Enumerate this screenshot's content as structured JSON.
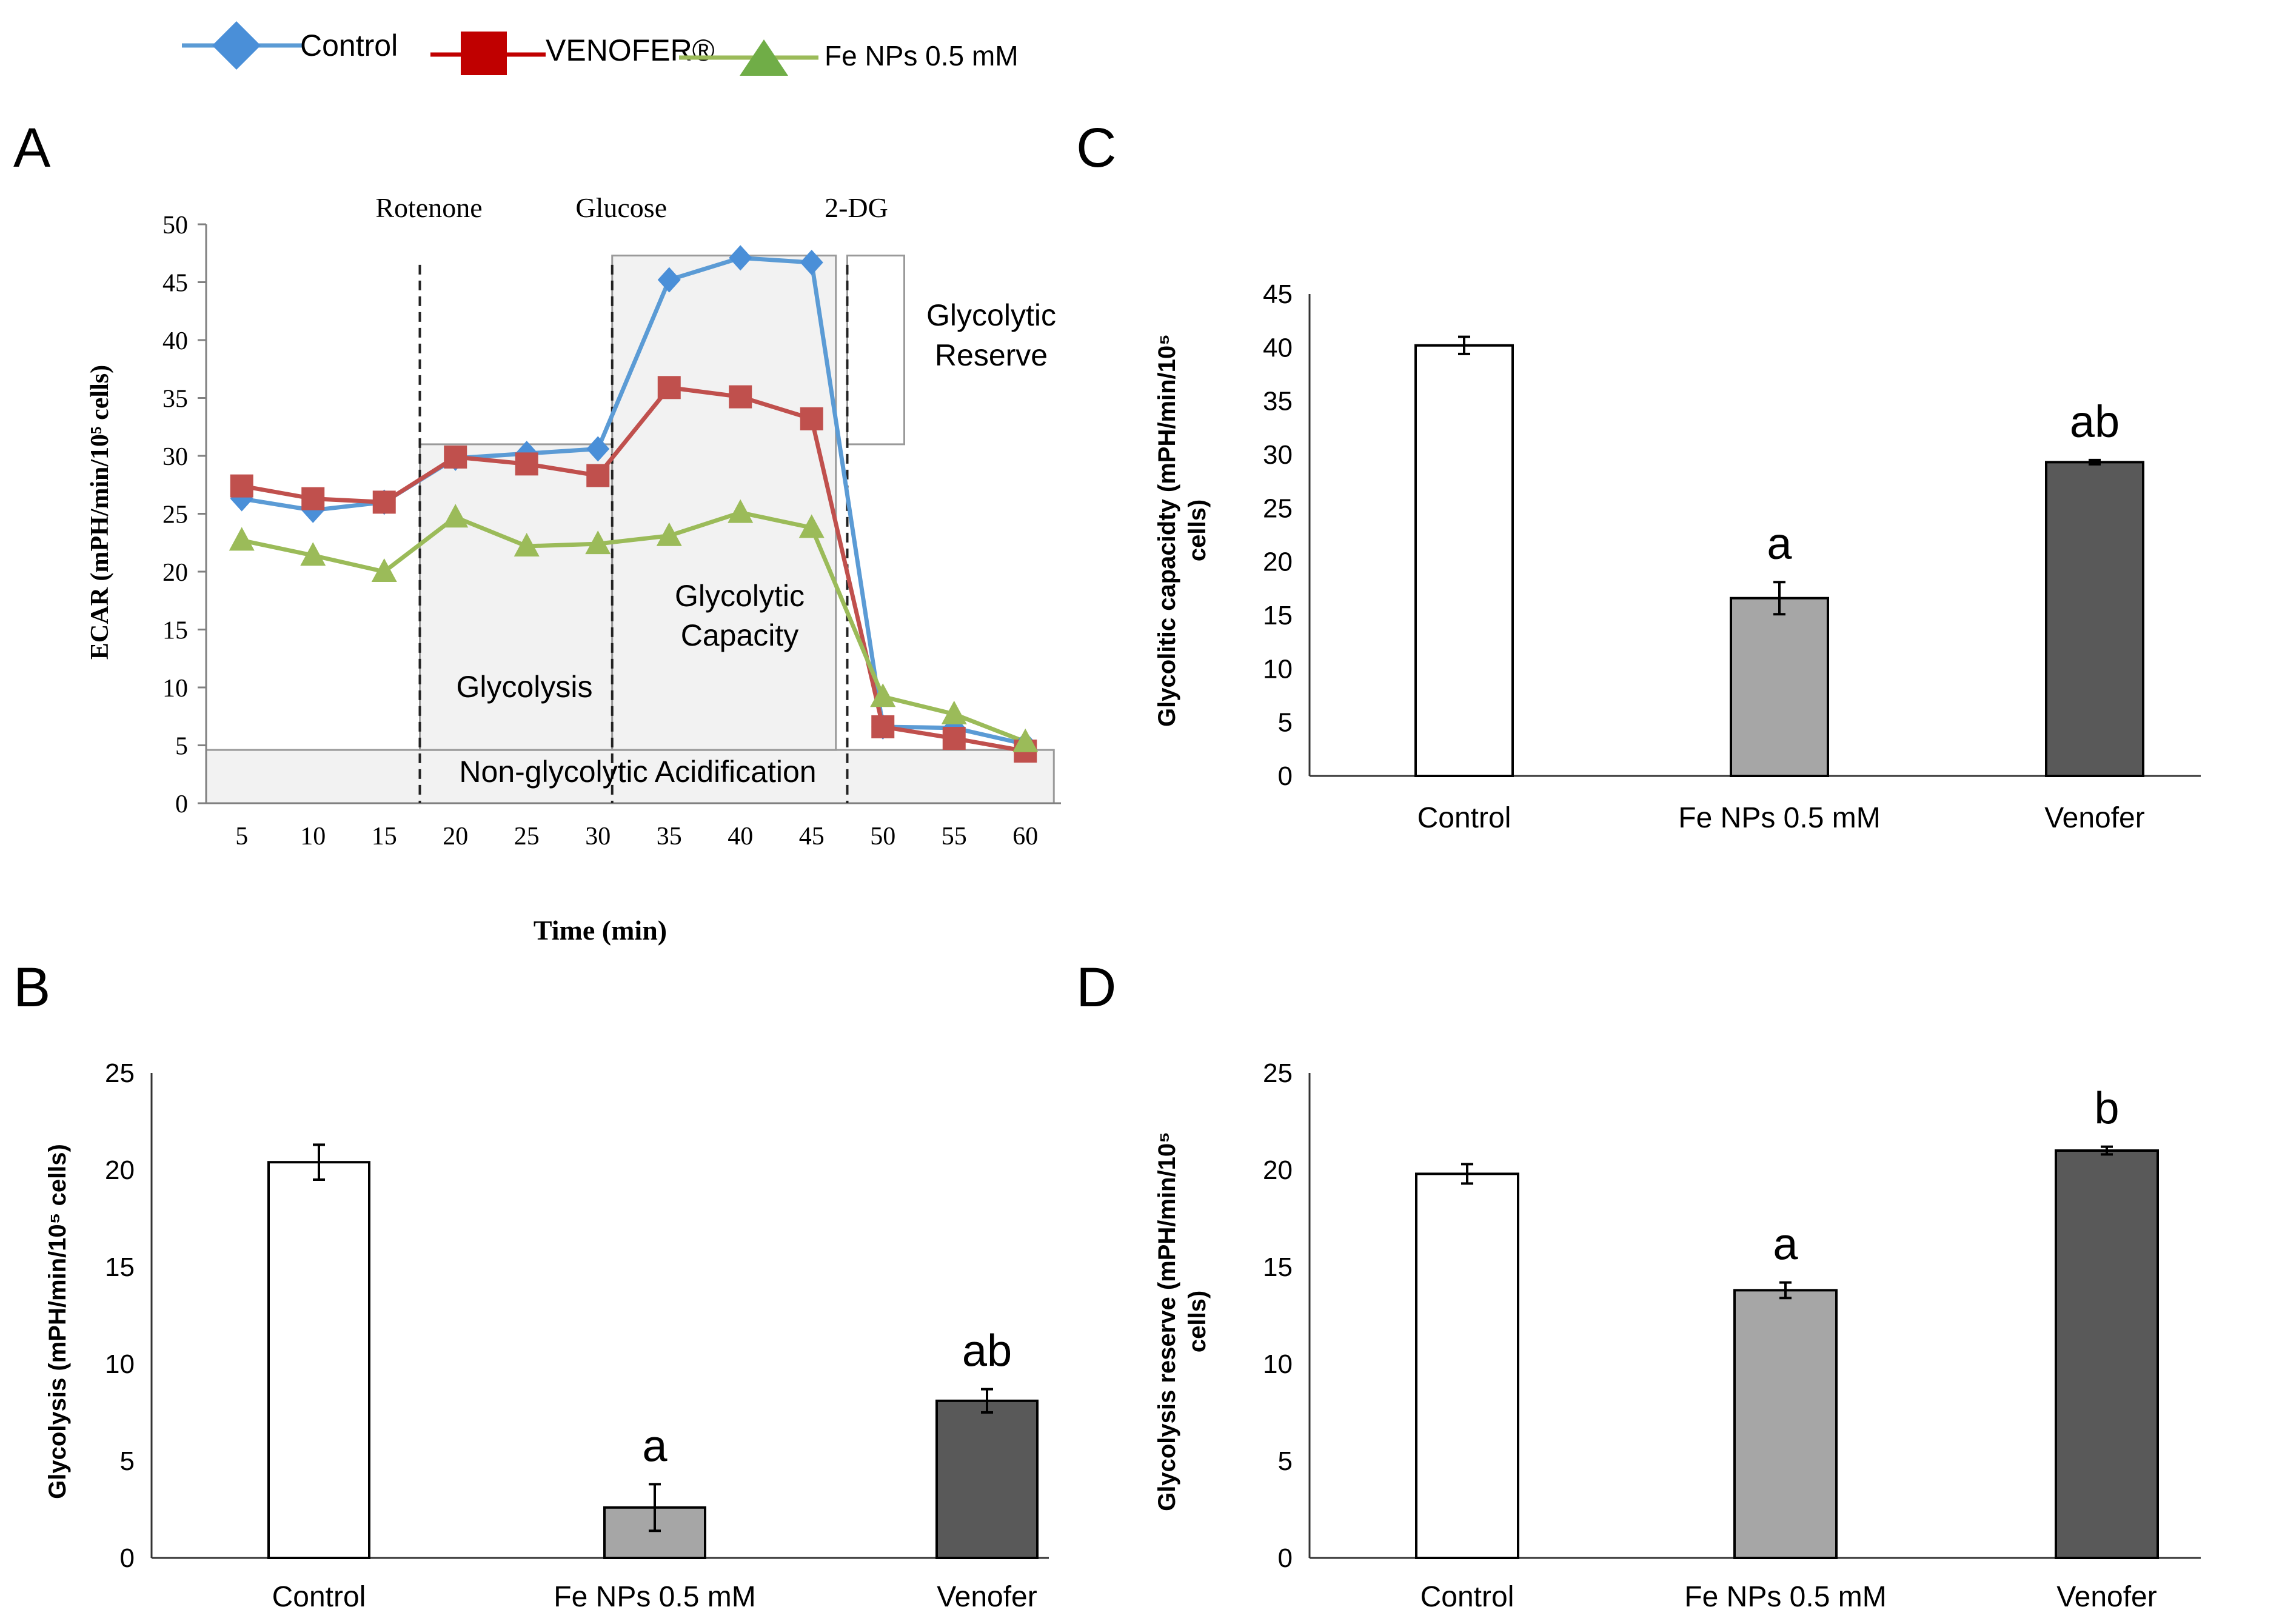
{
  "colors": {
    "control": "#5b9bd5",
    "control_marker": "#4a8fd8",
    "venofer": "#c0504d",
    "venofer_marker": "#c00000",
    "fenps": "#9bbb59",
    "fenps_marker": "#70ad47",
    "bar_control": "#ffffff",
    "bar_fenps": "#a6a6a6",
    "bar_venofer": "#595959",
    "region_fill": "#f2f2f2"
  },
  "legend": {
    "control": "Control",
    "venofer": "VENOFER®",
    "fenps": "Fe NPs 0.5 mM"
  },
  "chart_data": [
    {
      "panel": "A",
      "type": "line",
      "title": "",
      "xlabel": "Time (min)",
      "ylabel": "ECAR (mPH/min/10⁵ cells)",
      "x": [
        5,
        10,
        15,
        20,
        25,
        30,
        35,
        40,
        45,
        50,
        55,
        60
      ],
      "xlim": [
        2.5,
        62.5
      ],
      "ylim": [
        0,
        50
      ],
      "yticks": [
        0,
        5,
        10,
        15,
        20,
        25,
        30,
        35,
        40,
        45,
        50
      ],
      "series": [
        {
          "name": "Control",
          "values": [
            26.3,
            25.3,
            26.0,
            29.8,
            30.2,
            30.6,
            45.2,
            47.1,
            46.7,
            6.6,
            6.5,
            5.1
          ]
        },
        {
          "name": "VENOFER®",
          "values": [
            27.4,
            26.3,
            26.0,
            29.9,
            29.3,
            28.3,
            35.9,
            35.1,
            33.2,
            6.6,
            5.6,
            4.5
          ]
        },
        {
          "name": "Fe NPs 0.5 mM",
          "values": [
            22.7,
            21.4,
            20.0,
            24.7,
            22.2,
            22.4,
            23.1,
            25.1,
            23.8,
            9.2,
            7.7,
            5.3
          ]
        }
      ],
      "injections": [
        {
          "label": "Rotenone",
          "x": 17.5
        },
        {
          "label": "Glucose",
          "x": 31.0
        },
        {
          "label": "2-DG",
          "x": 47.5
        }
      ],
      "regions": [
        {
          "label": "Non-glycolytic Acidification",
          "x0": 2.5,
          "x1": 62.0,
          "y0": 0,
          "y1": 4.6
        },
        {
          "label": "Glycolysis",
          "x0": 17.5,
          "x1": 31.0,
          "y0": 4.6,
          "y1": 31.0
        },
        {
          "label": "Glycolytic Capacity",
          "x0": 31.0,
          "x1": 46.7,
          "y0": 4.6,
          "y1": 47.3
        },
        {
          "label": "Glycolytic Reserve",
          "x0": 47.5,
          "x1": 51.5,
          "y0": 31.0,
          "y1": 47.3
        }
      ]
    },
    {
      "panel": "B",
      "type": "bar",
      "categories": [
        "Control",
        "Fe NPs 0.5 mM",
        "Venofer"
      ],
      "values": [
        20.4,
        2.6,
        8.1
      ],
      "errors": [
        0.9,
        1.2,
        0.6
      ],
      "significance": [
        "",
        "a",
        "ab"
      ],
      "ylabel": "Glycolysis (mPH/min/10⁵ cells)",
      "ylim": [
        0,
        25
      ],
      "yticks": [
        0,
        5,
        10,
        15,
        20,
        25
      ]
    },
    {
      "panel": "C",
      "type": "bar",
      "categories": [
        "Control",
        "Fe NPs 0.5 mM",
        "Venofer"
      ],
      "values": [
        40.2,
        16.6,
        29.3
      ],
      "errors": [
        0.8,
        1.5,
        0.2
      ],
      "significance": [
        "",
        "a",
        "ab"
      ],
      "ylabel_lines": [
        "Glycolitic capacidty (mPH/min/10⁵",
        "cells)"
      ],
      "ylim": [
        0,
        45
      ],
      "yticks": [
        0,
        5,
        10,
        15,
        20,
        25,
        30,
        35,
        40,
        45
      ]
    },
    {
      "panel": "D",
      "type": "bar",
      "categories": [
        "Control",
        "Fe NPs 0.5 mM",
        "Venofer"
      ],
      "values": [
        19.8,
        13.8,
        21.0
      ],
      "errors": [
        0.5,
        0.4,
        0.2
      ],
      "significance": [
        "",
        "a",
        "b"
      ],
      "ylabel_lines": [
        "Glycolysis reserve (mPH/min/10⁵",
        "cells)"
      ],
      "ylim": [
        0,
        25
      ],
      "yticks": [
        0,
        5,
        10,
        15,
        20,
        25
      ]
    }
  ]
}
